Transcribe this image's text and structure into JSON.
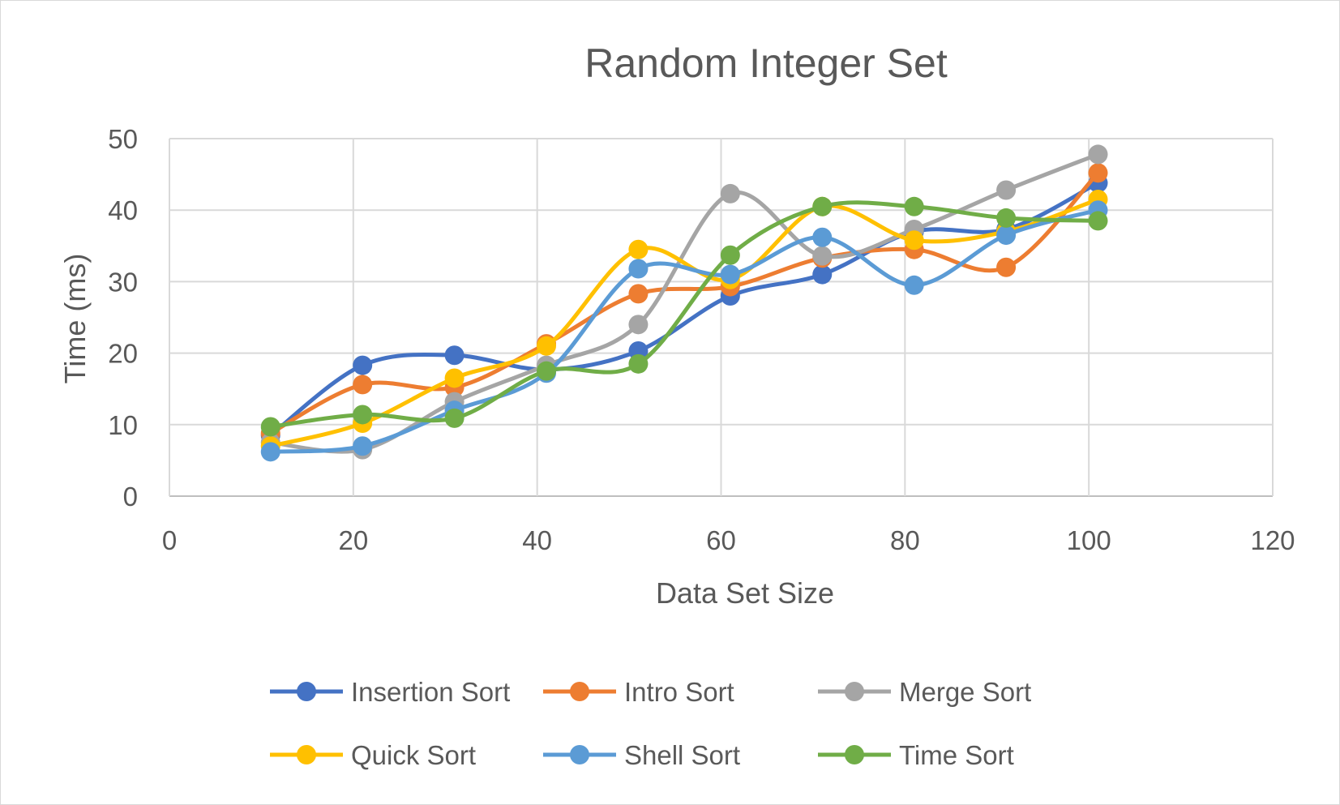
{
  "chart_data": {
    "type": "line",
    "smooth": true,
    "markers": true,
    "title": "Random Integer Set",
    "xlabel": "Data Set Size",
    "ylabel": "Time (ms)",
    "xlim": [
      0,
      120
    ],
    "ylim": [
      0,
      50
    ],
    "xticks": [
      "0",
      "20",
      "40",
      "60",
      "80",
      "100",
      "120"
    ],
    "yticks": [
      "0",
      "10",
      "20",
      "30",
      "40",
      "50"
    ],
    "grid": true,
    "legend_position": "bottom",
    "x": [
      11,
      21,
      31,
      41,
      51,
      61,
      71,
      81,
      91,
      101
    ],
    "series": [
      {
        "name": "Insertion Sort",
        "color": "#4472C4",
        "values": [
          8.5,
          18.3,
          19.7,
          17.7,
          20.3,
          28.0,
          31.0,
          37.0,
          37.3,
          43.8
        ]
      },
      {
        "name": "Intro Sort",
        "color": "#ED7D31",
        "values": [
          8.8,
          15.6,
          15.2,
          21.3,
          28.3,
          29.3,
          33.3,
          34.5,
          32.0,
          45.2
        ]
      },
      {
        "name": "Merge Sort",
        "color": "#A5A5A5",
        "values": [
          7.5,
          6.5,
          13.2,
          18.3,
          24.0,
          42.3,
          33.6,
          37.3,
          42.8,
          47.8
        ]
      },
      {
        "name": "Quick Sort",
        "color": "#FFC000",
        "values": [
          7.0,
          10.2,
          16.5,
          21.0,
          34.5,
          30.3,
          40.5,
          35.8,
          37.0,
          41.5
        ]
      },
      {
        "name": "Shell Sort",
        "color": "#5B9BD5",
        "values": [
          6.2,
          7.0,
          12.0,
          17.2,
          31.8,
          31.0,
          36.2,
          29.5,
          36.5,
          40.0
        ]
      },
      {
        "name": "Time Sort",
        "color": "#70AD47",
        "values": [
          9.7,
          11.4,
          10.9,
          17.5,
          18.5,
          33.7,
          40.5,
          40.5,
          38.9,
          38.5
        ]
      }
    ]
  }
}
